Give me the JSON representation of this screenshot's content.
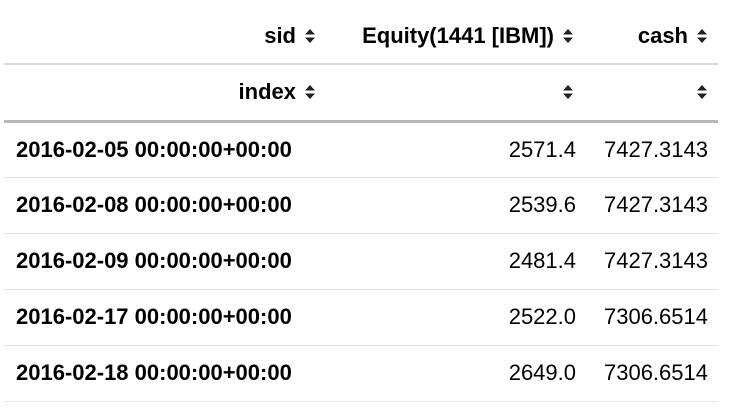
{
  "header": {
    "columns_label": "sid",
    "col1": "Equity(1441 [IBM])",
    "col2": "cash",
    "index_label": "index",
    "sort_icon": "sort-updown-icon"
  },
  "rows": [
    {
      "index": "2016-02-05 00:00:00+00:00",
      "equity": "2571.4",
      "cash": "7427.3143"
    },
    {
      "index": "2016-02-08 00:00:00+00:00",
      "equity": "2539.6",
      "cash": "7427.3143"
    },
    {
      "index": "2016-02-09 00:00:00+00:00",
      "equity": "2481.4",
      "cash": "7427.3143"
    },
    {
      "index": "2016-02-17 00:00:00+00:00",
      "equity": "2522.0",
      "cash": "7306.6514"
    },
    {
      "index": "2016-02-18 00:00:00+00:00",
      "equity": "2649.0",
      "cash": "7306.6514"
    }
  ]
}
